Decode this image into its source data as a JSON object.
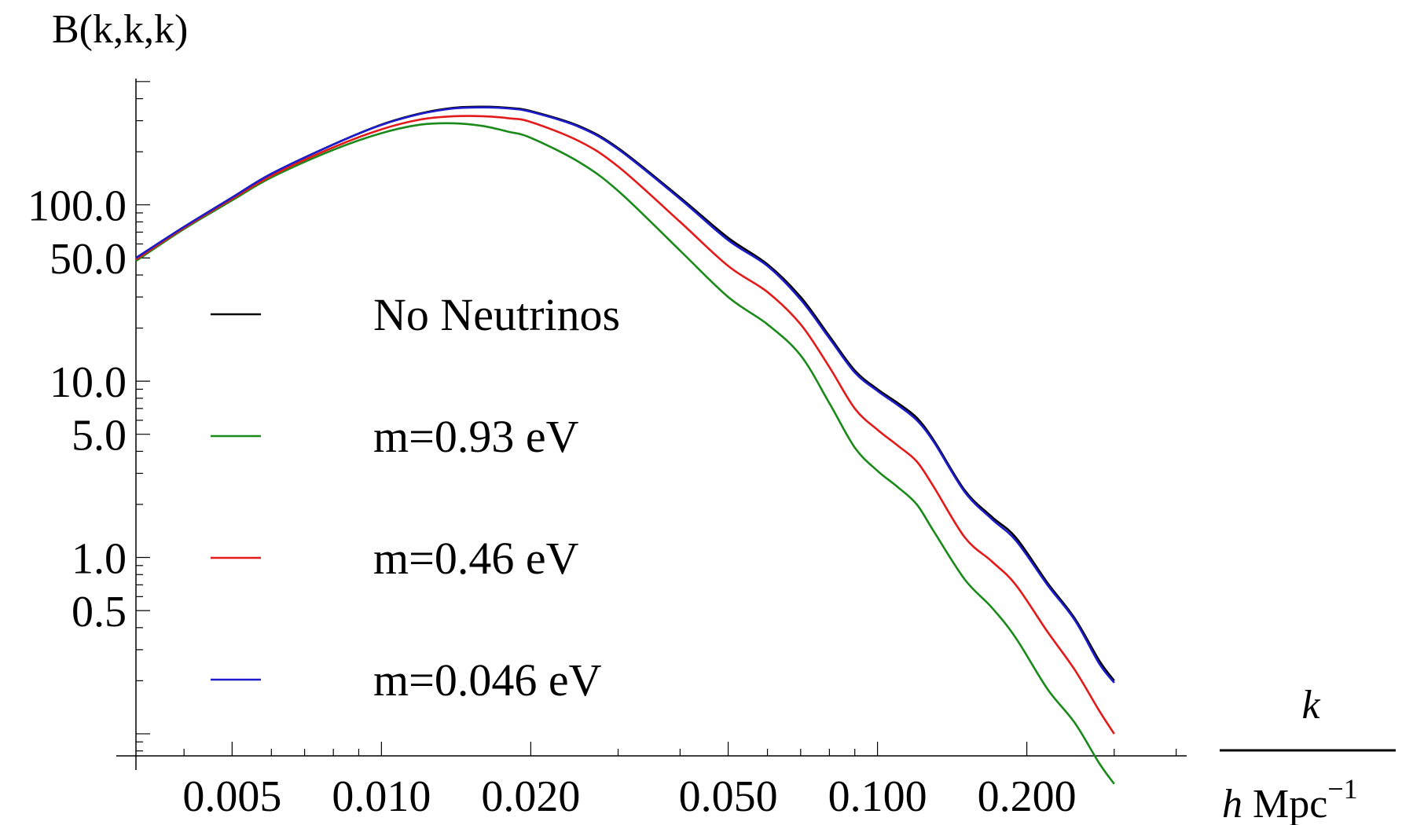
{
  "chart_data": {
    "type": "line",
    "ylabel": "B(k,k,k)",
    "xlabel": {
      "numerator": "k",
      "denominator": "h Mpc",
      "exponent": "−1"
    },
    "xscale": "log",
    "yscale": "log",
    "xlim": [
      0.0032,
      0.42
    ],
    "ylim": [
      0.075,
      520
    ],
    "x_ticks": [
      "0.005",
      "0.010",
      "0.020",
      "0.050",
      "0.100",
      "0.200"
    ],
    "y_ticks": [
      "100.0",
      "50.0",
      "10.0",
      "5.0",
      "1.0",
      "0.5"
    ],
    "grid": false,
    "legend_position": "left-center",
    "series": [
      {
        "name": "No Neutrinos",
        "color": "#000000",
        "points": [
          [
            0.0032,
            50
          ],
          [
            0.004,
            75
          ],
          [
            0.005,
            110
          ],
          [
            0.006,
            150
          ],
          [
            0.008,
            220
          ],
          [
            0.01,
            285
          ],
          [
            0.012,
            330
          ],
          [
            0.014,
            355
          ],
          [
            0.016,
            360
          ],
          [
            0.018,
            355
          ],
          [
            0.02,
            340
          ],
          [
            0.025,
            280
          ],
          [
            0.03,
            210
          ],
          [
            0.04,
            110
          ],
          [
            0.05,
            65
          ],
          [
            0.06,
            46
          ],
          [
            0.07,
            30
          ],
          [
            0.08,
            18
          ],
          [
            0.09,
            11.5
          ],
          [
            0.1,
            9
          ],
          [
            0.11,
            7.5
          ],
          [
            0.12,
            6.2
          ],
          [
            0.13,
            4.6
          ],
          [
            0.15,
            2.4
          ],
          [
            0.17,
            1.7
          ],
          [
            0.19,
            1.3
          ],
          [
            0.22,
            0.72
          ],
          [
            0.25,
            0.45
          ],
          [
            0.28,
            0.26
          ],
          [
            0.3,
            0.2
          ]
        ]
      },
      {
        "name": "m=0.93 eV",
        "color": "#1a8a1a",
        "points": [
          [
            0.0032,
            48
          ],
          [
            0.004,
            73
          ],
          [
            0.005,
            106
          ],
          [
            0.006,
            143
          ],
          [
            0.008,
            205
          ],
          [
            0.01,
            255
          ],
          [
            0.012,
            285
          ],
          [
            0.014,
            290
          ],
          [
            0.016,
            280
          ],
          [
            0.018,
            260
          ],
          [
            0.02,
            240
          ],
          [
            0.025,
            175
          ],
          [
            0.03,
            120
          ],
          [
            0.04,
            55
          ],
          [
            0.05,
            30
          ],
          [
            0.06,
            21
          ],
          [
            0.07,
            14
          ],
          [
            0.08,
            7.5
          ],
          [
            0.09,
            4.2
          ],
          [
            0.1,
            3.1
          ],
          [
            0.11,
            2.5
          ],
          [
            0.12,
            2.0
          ],
          [
            0.13,
            1.4
          ],
          [
            0.15,
            0.75
          ],
          [
            0.17,
            0.52
          ],
          [
            0.19,
            0.35
          ],
          [
            0.22,
            0.18
          ],
          [
            0.25,
            0.115
          ],
          [
            0.28,
            0.068
          ],
          [
            0.3,
            0.052
          ]
        ]
      },
      {
        "name": "m=0.46 eV",
        "color": "#e31a1a",
        "points": [
          [
            0.0032,
            49
          ],
          [
            0.004,
            74
          ],
          [
            0.005,
            108
          ],
          [
            0.006,
            146
          ],
          [
            0.008,
            212
          ],
          [
            0.01,
            268
          ],
          [
            0.012,
            305
          ],
          [
            0.014,
            318
          ],
          [
            0.016,
            318
          ],
          [
            0.018,
            310
          ],
          [
            0.02,
            295
          ],
          [
            0.025,
            230
          ],
          [
            0.03,
            165
          ],
          [
            0.04,
            80
          ],
          [
            0.05,
            45
          ],
          [
            0.06,
            32
          ],
          [
            0.07,
            21
          ],
          [
            0.08,
            12
          ],
          [
            0.09,
            7
          ],
          [
            0.1,
            5.3
          ],
          [
            0.11,
            4.3
          ],
          [
            0.12,
            3.5
          ],
          [
            0.13,
            2.5
          ],
          [
            0.15,
            1.3
          ],
          [
            0.17,
            0.95
          ],
          [
            0.19,
            0.7
          ],
          [
            0.22,
            0.38
          ],
          [
            0.25,
            0.23
          ],
          [
            0.28,
            0.135
          ],
          [
            0.3,
            0.1
          ]
        ]
      },
      {
        "name": "m=0.046 eV",
        "color": "#1c1ccc",
        "points": [
          [
            0.0032,
            50
          ],
          [
            0.004,
            75
          ],
          [
            0.005,
            110
          ],
          [
            0.006,
            150
          ],
          [
            0.008,
            220
          ],
          [
            0.01,
            284
          ],
          [
            0.012,
            328
          ],
          [
            0.014,
            352
          ],
          [
            0.016,
            357
          ],
          [
            0.018,
            352
          ],
          [
            0.02,
            337
          ],
          [
            0.025,
            277
          ],
          [
            0.03,
            207
          ],
          [
            0.04,
            108
          ],
          [
            0.05,
            63
          ],
          [
            0.06,
            45
          ],
          [
            0.07,
            29
          ],
          [
            0.08,
            17.5
          ],
          [
            0.09,
            11.2
          ],
          [
            0.1,
            8.8
          ],
          [
            0.11,
            7.3
          ],
          [
            0.12,
            6.0
          ],
          [
            0.13,
            4.5
          ],
          [
            0.15,
            2.35
          ],
          [
            0.17,
            1.65
          ],
          [
            0.19,
            1.25
          ],
          [
            0.22,
            0.7
          ],
          [
            0.25,
            0.44
          ],
          [
            0.28,
            0.25
          ],
          [
            0.3,
            0.195
          ]
        ]
      }
    ]
  }
}
